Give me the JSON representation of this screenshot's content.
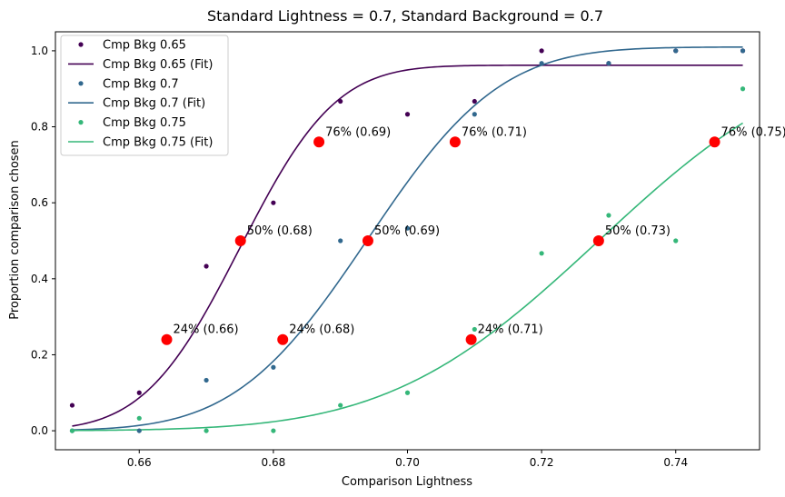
{
  "chart_data": {
    "type": "scatter",
    "title": "Standard Lightness = 0.7, Standard Background = 0.7",
    "xlabel": "Comparison Lightness",
    "ylabel": "Proportion comparison chosen",
    "xlim": [
      0.6475,
      0.7525
    ],
    "ylim": [
      -0.05,
      1.05
    ],
    "xticks": [
      0.66,
      0.68,
      0.7,
      0.72,
      0.74
    ],
    "xtick_labels": [
      "0.66",
      "0.68",
      "0.70",
      "0.72",
      "0.74"
    ],
    "yticks": [
      0.0,
      0.2,
      0.4,
      0.6,
      0.8,
      1.0
    ],
    "ytick_labels": [
      "0.0",
      "0.2",
      "0.4",
      "0.6",
      "0.8",
      "1.0"
    ],
    "grid": false,
    "legend_position": "top-left",
    "threshold_color": "#ff0000",
    "series": [
      {
        "name": "Cmp Bkg 0.65",
        "fit_name": "Cmp Bkg 0.65 (Fit)",
        "color": "#440154",
        "points": {
          "x": [
            0.65,
            0.66,
            0.67,
            0.68,
            0.69,
            0.7,
            0.71,
            0.72,
            0.73,
            0.74,
            0.75
          ],
          "y": [
            0.067,
            0.1,
            0.433,
            0.6,
            0.867,
            0.833,
            0.867,
            1.0,
            0.967,
            1.0,
            1.0
          ]
        },
        "fit": {
          "lapse_max": 0.962,
          "mu": 0.675,
          "sigma": 0.0112,
          "guess": 0.0
        },
        "thresholds": [
          {
            "x": 0.6641,
            "y": 0.24,
            "label": "24% (0.66)"
          },
          {
            "x": 0.6751,
            "y": 0.5,
            "label": "50% (0.68)"
          },
          {
            "x": 0.6868,
            "y": 0.76,
            "label": "76% (0.69)"
          }
        ]
      },
      {
        "name": "Cmp Bkg 0.7",
        "fit_name": "Cmp Bkg 0.7 (Fit)",
        "color": "#31688e",
        "points": {
          "x": [
            0.65,
            0.66,
            0.67,
            0.68,
            0.69,
            0.7,
            0.71,
            0.72,
            0.73,
            0.74,
            0.75
          ],
          "y": [
            0.0,
            0.0,
            0.133,
            0.167,
            0.5,
            0.533,
            0.833,
            0.967,
            0.967,
            1.0,
            1.0
          ]
        },
        "fit": {
          "lapse_max": 1.01,
          "mu": 0.6941,
          "sigma": 0.0155,
          "guess": 0.0
        },
        "thresholds": [
          {
            "x": 0.6814,
            "y": 0.24,
            "label": "24% (0.68)"
          },
          {
            "x": 0.6941,
            "y": 0.5,
            "label": "50% (0.69)"
          },
          {
            "x": 0.7071,
            "y": 0.76,
            "label": "76% (0.71)"
          }
        ]
      },
      {
        "name": "Cmp Bkg 0.75",
        "fit_name": "Cmp Bkg 0.75 (Fit)",
        "color": "#35b779",
        "points": {
          "x": [
            0.65,
            0.66,
            0.67,
            0.68,
            0.69,
            0.7,
            0.71,
            0.72,
            0.73,
            0.74,
            0.75
          ],
          "y": [
            0.0,
            0.033,
            0.0,
            0.0,
            0.067,
            0.1,
            0.267,
            0.467,
            0.567,
            0.5,
            0.9
          ]
        },
        "fit": {
          "lapse_max": 1.0,
          "mu": 0.7285,
          "sigma": 0.0245,
          "guess": 0.0
        },
        "thresholds": [
          {
            "x": 0.7095,
            "y": 0.24,
            "label": "24% (0.71)"
          },
          {
            "x": 0.7285,
            "y": 0.5,
            "label": "50% (0.73)"
          },
          {
            "x": 0.7458,
            "y": 0.76,
            "label": "76% (0.75)"
          }
        ]
      }
    ]
  }
}
